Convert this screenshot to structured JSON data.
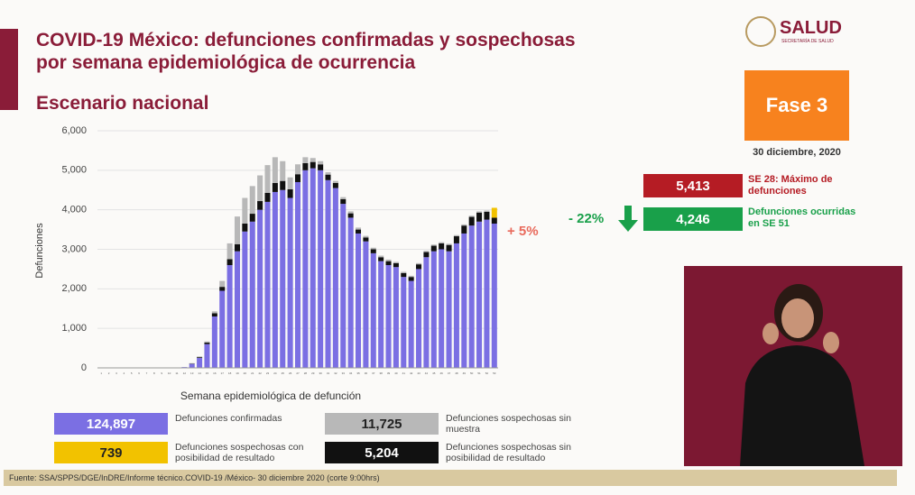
{
  "header": {
    "title_line1": "COVID-19 México: defunciones confirmadas y sospechosas",
    "title_line2": "por semana epidemiológica de ocurrencia",
    "subtitle": "Escenario nacional",
    "logo": "SALUD",
    "logo_sub": "SECRETARÍA DE SALUD"
  },
  "panel": {
    "phase": "Fase 3",
    "date": "30 diciembre, 2020",
    "max_value": "5,413",
    "max_text": "SE 28: Máximo de defunciones",
    "change": "- 22%",
    "current_value": "4,246",
    "current_text": "Defunciones ocurridas en SE 51"
  },
  "footer": {
    "source": "Fuente: SSA/SPPS/DGE/InDRE/Informe técnico.COVID-19 /México- 30 diciembre 2020 (corte 9:00hrs)"
  },
  "chart_data": {
    "type": "bar",
    "stacked": true,
    "x_label": "Semana epidemiológica de defunción",
    "y_label": "Defunciones",
    "annotation": "+ 5%",
    "categories": [
      "1",
      "2",
      "3",
      "4",
      "5",
      "6",
      "7",
      "8",
      "9",
      "10",
      "11",
      "12",
      "13",
      "14",
      "15",
      "16",
      "17",
      "18",
      "19",
      "20",
      "21",
      "22",
      "23",
      "24",
      "25",
      "26",
      "27",
      "28",
      "29",
      "30",
      "31",
      "32",
      "33",
      "34",
      "35",
      "36",
      "37",
      "38",
      "39",
      "40",
      "41",
      "42",
      "43",
      "44",
      "45",
      "46",
      "47",
      "48",
      "49",
      "50",
      "51",
      "52",
      "53"
    ],
    "ylim": [
      0,
      6000
    ],
    "yticks": [
      0,
      {
        "value": 1000,
        "label": "1,000"
      },
      {
        "value": 2000,
        "label": "2,000"
      },
      {
        "value": 3000,
        "label": "3,000"
      },
      {
        "value": 4000,
        "label": "4,000"
      },
      {
        "value": 5000,
        "label": "5,000"
      },
      {
        "value": 6000,
        "label": "6,000"
      }
    ],
    "series": [
      {
        "name": "Defunciones confirmadas",
        "total_label": "124,897",
        "color": "#7b6fe3",
        "values": [
          0,
          0,
          0,
          0,
          0,
          0,
          0,
          0,
          0,
          0,
          5,
          20,
          100,
          250,
          600,
          1300,
          1950,
          2600,
          2950,
          3450,
          3700,
          4000,
          4200,
          4450,
          4500,
          4300,
          4700,
          5000,
          5050,
          5000,
          4750,
          4550,
          4150,
          3800,
          3400,
          3200,
          2900,
          2700,
          2600,
          2550,
          2300,
          2200,
          2500,
          2800,
          2950,
          3000,
          2950,
          3150,
          3400,
          3600,
          3700,
          3750,
          3650
        ]
      },
      {
        "name": "Defunciones sospechosas sin posibilidad de resultado",
        "total_label": "5,204",
        "color": "#111111",
        "values": [
          0,
          0,
          0,
          0,
          0,
          0,
          0,
          0,
          0,
          0,
          0,
          0,
          10,
          20,
          40,
          80,
          100,
          150,
          180,
          200,
          200,
          220,
          230,
          230,
          230,
          220,
          200,
          180,
          160,
          150,
          140,
          130,
          120,
          110,
          100,
          100,
          100,
          100,
          100,
          100,
          100,
          100,
          120,
          130,
          140,
          150,
          160,
          180,
          200,
          220,
          230,
          200,
          150
        ]
      },
      {
        "name": "Defunciones sospechosas con posibilidad de resultado",
        "total_label": "739",
        "color": "#f2c200",
        "values": [
          0,
          0,
          0,
          0,
          0,
          0,
          0,
          0,
          0,
          0,
          0,
          0,
          0,
          0,
          0,
          0,
          0,
          0,
          0,
          0,
          0,
          0,
          0,
          0,
          0,
          0,
          0,
          0,
          0,
          0,
          0,
          0,
          0,
          0,
          0,
          0,
          0,
          0,
          0,
          0,
          0,
          0,
          0,
          0,
          0,
          0,
          0,
          0,
          0,
          0,
          0,
          0,
          250
        ]
      },
      {
        "name": "Defunciones sospechosas sin muestra",
        "total_label": "11,725",
        "color": "#b8b8b8",
        "values": [
          0,
          0,
          0,
          0,
          0,
          0,
          0,
          0,
          0,
          0,
          0,
          0,
          10,
          20,
          30,
          50,
          150,
          400,
          700,
          650,
          700,
          650,
          700,
          650,
          500,
          300,
          250,
          150,
          100,
          80,
          60,
          50,
          50,
          50,
          50,
          40,
          40,
          40,
          40,
          30,
          30,
          30,
          30,
          30,
          30,
          30,
          30,
          30,
          30,
          30,
          30,
          30,
          0
        ]
      }
    ]
  }
}
